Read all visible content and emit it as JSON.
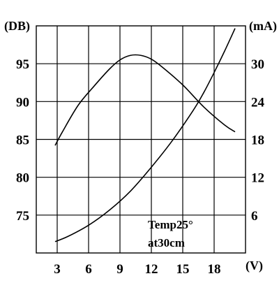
{
  "chart_data": {
    "type": "line",
    "title": "",
    "x_unit_label": "(V)",
    "y_left_unit_label": "(DB)",
    "y_right_unit_label": "(mA)",
    "xlim": [
      1,
      21
    ],
    "ylim_left": [
      70,
      100
    ],
    "ylim_right": [
      0,
      36
    ],
    "x_ticks": [
      3,
      6,
      9,
      12,
      15,
      18
    ],
    "x_tick_labels": [
      "3",
      "6",
      "9",
      "12",
      "15",
      "18"
    ],
    "y_left_ticks": [
      75,
      80,
      85,
      90,
      95
    ],
    "y_left_tick_labels": [
      "75",
      "80",
      "85",
      "90",
      "95"
    ],
    "y_right_ticks": [
      6,
      12,
      18,
      24,
      30
    ],
    "y_right_tick_labels": [
      "6",
      "12",
      "18",
      "24",
      "30"
    ],
    "grid": true,
    "annotation": [
      "Temp25°",
      "at30cm"
    ],
    "series": [
      {
        "axis": "left",
        "values_note": "sound level curve (DB)",
        "x": [
          2.8,
          3.5,
          5,
          6.5,
          8,
          9,
          10,
          11,
          12,
          13,
          15,
          17,
          19,
          20
        ],
        "y": [
          84.2,
          86,
          89.5,
          92,
          94.3,
          95.5,
          96.1,
          96.1,
          95.6,
          94.6,
          92.2,
          89.3,
          86.9,
          86
        ]
      },
      {
        "axis": "right",
        "values_note": "current curve (mA)",
        "x": [
          2.8,
          4,
          6,
          8,
          10,
          12,
          14,
          16,
          17,
          18,
          19,
          20
        ],
        "y": [
          1.8,
          2.6,
          4.4,
          6.8,
          9.8,
          13.6,
          17.8,
          22.6,
          25.4,
          28.6,
          32,
          35.6
        ]
      }
    ]
  }
}
